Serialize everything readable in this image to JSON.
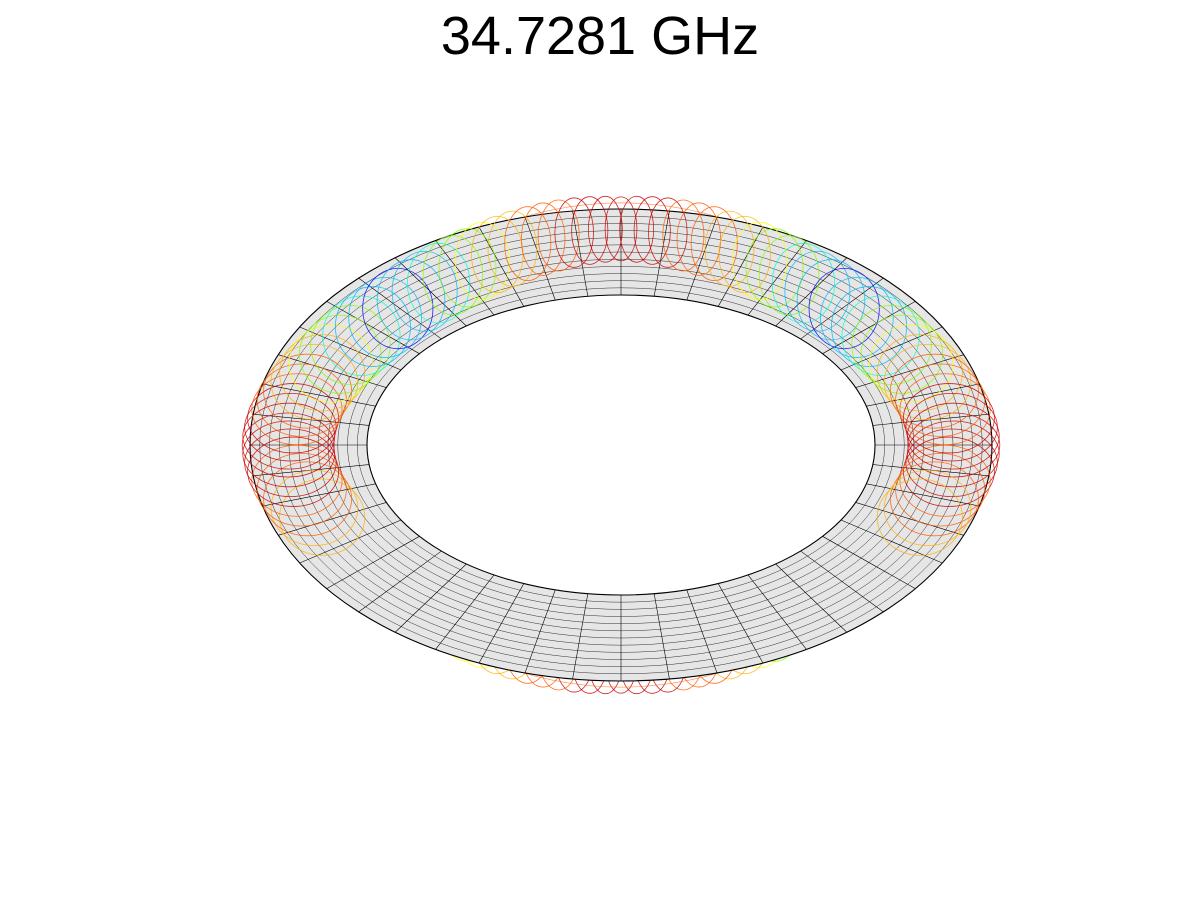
{
  "title": "34.7281 GHz",
  "colors": {
    "background": "#ffffff",
    "surface": "#e6e6e6",
    "edge": "#000000",
    "colormap": [
      "#0000ff",
      "#00b7ff",
      "#00ffcc",
      "#7fff00",
      "#ffff00",
      "#ffb000",
      "#ff5a00",
      "#c80000"
    ]
  }
}
